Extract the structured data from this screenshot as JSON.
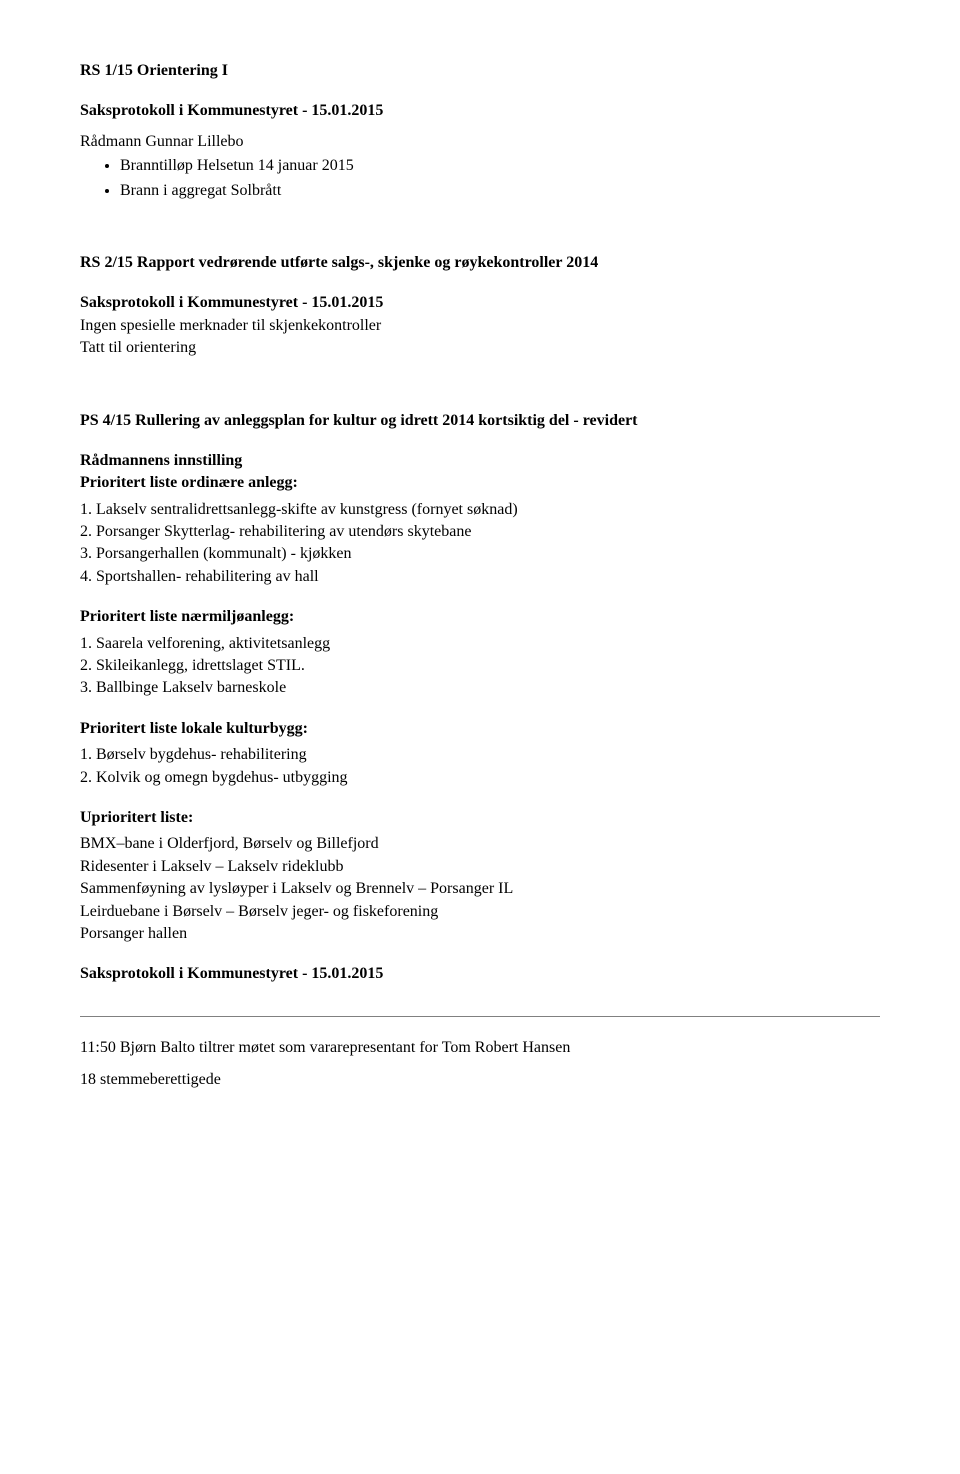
{
  "s1": {
    "title": "RS 1/15 Orientering I",
    "sub": "Saksprotokoll i Kommunestyret - 15.01.2015",
    "author": "Rådmann Gunnar Lillebo",
    "bullets": [
      "Branntilløp Helsetun 14 januar 2015",
      "Brann i aggregat Solbrått"
    ]
  },
  "s2": {
    "title": "RS 2/15 Rapport vedrørende utførte salgs-, skjenke og røykekontroller 2014",
    "sub": "Saksprotokoll i Kommunestyret - 15.01.2015",
    "line1": "Ingen spesielle merknader til skjenkekontroller",
    "line2": "Tatt til orientering"
  },
  "s3": {
    "title": "PS 4/15 Rullering av anleggsplan for kultur og idrett 2014 kortsiktig del - revidert",
    "sub": "Rådmannens innstilling",
    "p1_heading": "Prioritert liste ordinære anlegg:",
    "p1_items": [
      "1. Lakselv sentralidrettsanlegg-skifte av kunstgress (fornyet søknad)",
      "2. Porsanger Skytterlag- rehabilitering av utendørs skytebane",
      "3. Porsangerhallen (kommunalt) - kjøkken",
      "4. Sportshallen- rehabilitering av hall"
    ],
    "p2_heading": "Prioritert liste nærmiljøanlegg:",
    "p2_items": [
      "1. Saarela velforening, aktivitetsanlegg",
      "2. Skileikanlegg, idrettslaget STIL.",
      "3. Ballbinge Lakselv barneskole"
    ],
    "p3_heading": "Prioritert liste lokale kulturbygg:",
    "p3_items": [
      "1. Børselv bygdehus- rehabilitering",
      "2. Kolvik og omegn bygdehus- utbygging"
    ],
    "p4_heading": "Uprioritert liste:",
    "p4_items": [
      "BMX–bane i Olderfjord, Børselv og Billefjord",
      "Ridesenter i Lakselv – Lakselv rideklubb",
      "Sammenføyning av lysløyper i Lakselv og Brennelv – Porsanger IL",
      "Leirduebane i Børselv – Børselv jeger- og fiskeforening",
      "Porsanger hallen"
    ],
    "footer_heading": "Saksprotokoll i Kommunestyret - 15.01.2015"
  },
  "footer": {
    "line1": "11:50  Bjørn Balto tiltrer møtet som vararepresentant for Tom Robert Hansen",
    "line2": "18 stemmeberettigede"
  }
}
